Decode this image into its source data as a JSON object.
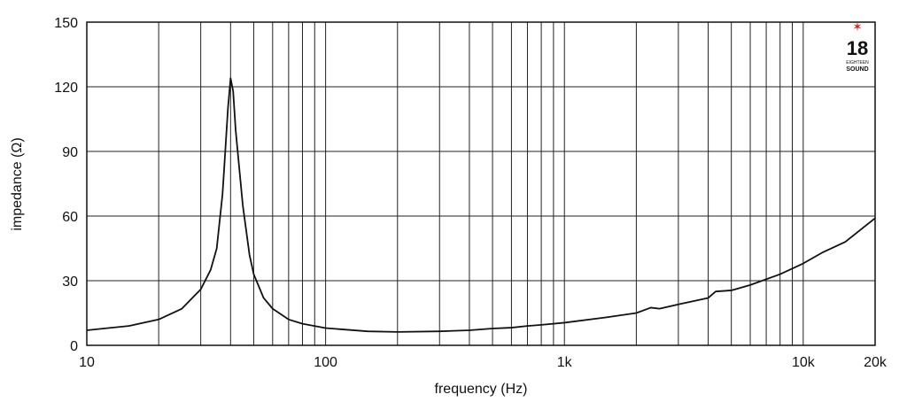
{
  "chart_data": {
    "type": "line",
    "xlabel": "frequency (Hz)",
    "ylabel": "impedance (Ω)",
    "x": [
      10,
      15,
      20,
      25,
      30,
      33,
      35,
      37,
      38,
      39,
      40,
      41,
      42,
      43,
      45,
      48,
      50,
      55,
      60,
      70,
      80,
      100,
      150,
      200,
      300,
      400,
      500,
      600,
      700,
      800,
      1000,
      1500,
      2000,
      2300,
      2500,
      3000,
      4000,
      4300,
      5000,
      6000,
      8000,
      10000,
      12000,
      15000,
      18000,
      20000
    ],
    "values": [
      7,
      9,
      12,
      17,
      26,
      35,
      45,
      70,
      90,
      110,
      124,
      118,
      100,
      88,
      65,
      42,
      33,
      22,
      17,
      12,
      10,
      8,
      6.5,
      6.2,
      6.5,
      7,
      7.8,
      8.2,
      9,
      9.5,
      10.5,
      13,
      15,
      17.5,
      17,
      19,
      22,
      25,
      25.5,
      28,
      33,
      38,
      43,
      48,
      55,
      59
    ],
    "color": "#111111",
    "xlim": [
      10,
      20000
    ],
    "xlog": true,
    "xticks": [
      10,
      100,
      {
        "value": 1000,
        "label": "1k"
      },
      {
        "value": 10000,
        "label": "10k"
      },
      {
        "value": 20000,
        "label": "20k"
      }
    ],
    "x_minor_ticks": [
      20,
      30,
      40,
      50,
      60,
      70,
      80,
      90,
      200,
      300,
      400,
      500,
      600,
      700,
      800,
      900,
      2000,
      3000,
      4000,
      5000,
      6000,
      7000,
      8000,
      9000
    ],
    "ylim": [
      0,
      150
    ],
    "yticks": [
      0,
      30,
      60,
      90,
      120,
      150
    ],
    "grid": true,
    "logo": {
      "number": "18",
      "small": "EIGHTEEN",
      "word": "SOUND"
    }
  }
}
